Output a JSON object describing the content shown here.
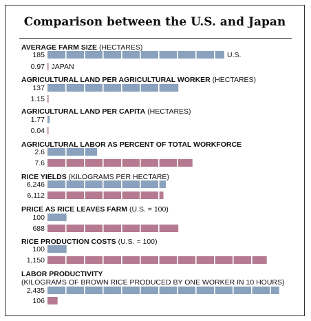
{
  "title": "Comparison between the U.S. and Japan",
  "colors": {
    "us": "#8aa2bd",
    "japan": "#b57a90",
    "segment_gap": "#ffffff"
  },
  "chart_data": [
    {
      "type": "bar",
      "title": "AVERAGE FARM SIZE",
      "unit": "(HECTARES)",
      "subtitle": "",
      "series": [
        {
          "name": "U.S.",
          "value": 185,
          "label": "185"
        },
        {
          "name": "JAPAN",
          "value": 0.97,
          "label": "0.97"
        }
      ],
      "max": 185,
      "bar_length": 1.0,
      "series_labels_shown": true
    },
    {
      "type": "bar",
      "title": "AGRICULTURAL LAND PER AGRICULTURAL WORKER",
      "unit": "(HECTARES)",
      "subtitle": "",
      "series": [
        {
          "name": "U.S.",
          "value": 137,
          "label": "137"
        },
        {
          "name": "JAPAN",
          "value": 1.15,
          "label": "1.15"
        }
      ],
      "max": 137,
      "bar_length": 0.74,
      "series_labels_shown": false
    },
    {
      "type": "bar",
      "title": "AGRICULTURAL LAND PER CAPITA",
      "unit": "(HECTARES)",
      "subtitle": "",
      "series": [
        {
          "name": "U.S.",
          "value": 1.77,
          "label": "1.77"
        },
        {
          "name": "JAPAN",
          "value": 0.04,
          "label": "0.04"
        }
      ],
      "max": 1.77,
      "bar_length": 0.012,
      "series_labels_shown": false
    },
    {
      "type": "bar",
      "title": "AGRICULTURAL LABOR AS PERCENT OF TOTAL WORKFORCE",
      "unit": "",
      "subtitle": "",
      "series": [
        {
          "name": "U.S.",
          "value": 2.6,
          "label": "2.6"
        },
        {
          "name": "JAPAN",
          "value": 7.6,
          "label": "7.6"
        }
      ],
      "max": 7.6,
      "bar_length": 0.82,
      "series_labels_shown": false
    },
    {
      "type": "bar",
      "title": "RICE YIELDS",
      "unit": "(KILOGRAMS PER HECTARE)",
      "subtitle": "",
      "series": [
        {
          "name": "U.S.",
          "value": 6246,
          "label": "6,246"
        },
        {
          "name": "JAPAN",
          "value": 6112,
          "label": "6,112"
        }
      ],
      "max": 6246,
      "bar_length": 0.67,
      "series_labels_shown": false
    },
    {
      "type": "bar",
      "title": "PRICE AS RICE LEAVES FARM",
      "unit": "(U.S. = 100)",
      "subtitle": "",
      "series": [
        {
          "name": "U.S.",
          "value": 100,
          "label": "100"
        },
        {
          "name": "JAPAN",
          "value": 688,
          "label": "688"
        }
      ],
      "max": 688,
      "bar_length": 0.74,
      "series_labels_shown": false
    },
    {
      "type": "bar",
      "title": "RICE PRODUCTION COSTS",
      "unit": "(U.S. = 100)",
      "subtitle": "",
      "series": [
        {
          "name": "U.S.",
          "value": 100,
          "label": "100"
        },
        {
          "name": "JAPAN",
          "value": 1150,
          "label": "1,150"
        }
      ],
      "max": 1150,
      "bar_length": 1.24,
      "series_labels_shown": false
    },
    {
      "type": "bar",
      "title": "LABOR PRODUCTIVITY",
      "unit": "",
      "subtitle": "(KILOGRAMS OF BROWN RICE PRODUCED BY ONE WORKER IN 10 HOURS)",
      "series": [
        {
          "name": "U.S.",
          "value": 2435,
          "label": "2,435"
        },
        {
          "name": "JAPAN",
          "value": 106,
          "label": "106"
        }
      ],
      "max": 2435,
      "bar_length": 1.31,
      "series_labels_shown": false
    }
  ]
}
